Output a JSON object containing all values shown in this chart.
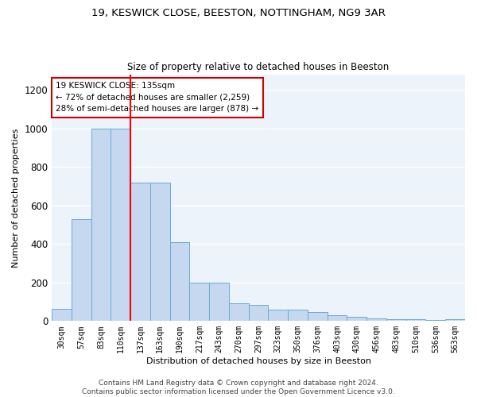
{
  "title1": "19, KESWICK CLOSE, BEESTON, NOTTINGHAM, NG9 3AR",
  "title2": "Size of property relative to detached houses in Beeston",
  "xlabel": "Distribution of detached houses by size in Beeston",
  "ylabel": "Number of detached properties",
  "categories": [
    "30sqm",
    "57sqm",
    "83sqm",
    "110sqm",
    "137sqm",
    "163sqm",
    "190sqm",
    "217sqm",
    "243sqm",
    "270sqm",
    "297sqm",
    "323sqm",
    "350sqm",
    "376sqm",
    "403sqm",
    "430sqm",
    "456sqm",
    "483sqm",
    "510sqm",
    "536sqm",
    "563sqm"
  ],
  "bar_values": [
    65,
    530,
    1000,
    1000,
    720,
    720,
    410,
    200,
    200,
    90,
    85,
    60,
    60,
    45,
    30,
    20,
    15,
    10,
    10,
    5,
    10
  ],
  "bar_color": "#c5d8f0",
  "bar_edge_color": "#6aaad4",
  "annotation_text": "19 KESWICK CLOSE: 135sqm\n← 72% of detached houses are smaller (2,259)\n28% of semi-detached houses are larger (878) →",
  "annotation_box_color": "#ffffff",
  "annotation_box_edge": "#cc0000",
  "footnote": "Contains HM Land Registry data © Crown copyright and database right 2024.\nContains public sector information licensed under the Open Government Licence v3.0.",
  "bg_color": "#edf3fb",
  "ylim": [
    0,
    1280
  ],
  "red_line_index": 3.5,
  "title1_fontsize": 9.5,
  "title2_fontsize": 8.5,
  "xlabel_fontsize": 8,
  "ylabel_fontsize": 8,
  "tick_fontsize": 7,
  "footnote_fontsize": 6.5,
  "annotation_fontsize": 7.5
}
